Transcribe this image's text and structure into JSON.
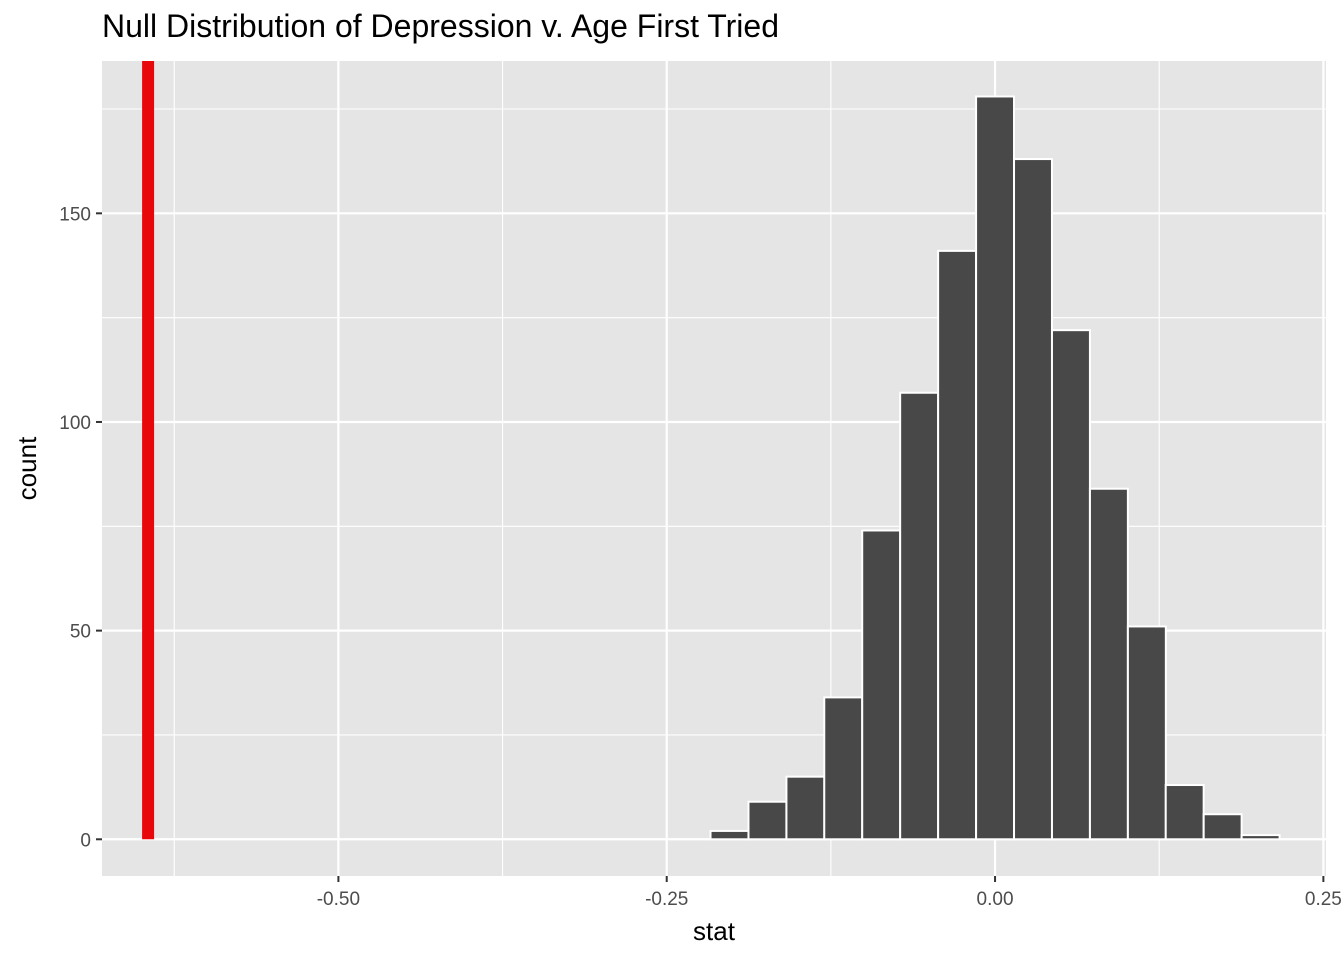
{
  "chart_data": {
    "type": "bar",
    "title": "Null Distribution of Depression v. Age First Tried",
    "xlabel": "stat",
    "ylabel": "count",
    "xlim": [
      -0.68,
      0.252
    ],
    "ylim": [
      -8.8,
      186.5
    ],
    "x_ticks": [
      -0.5,
      -0.25,
      0.0,
      0.25
    ],
    "x_tick_labels": [
      "-0.50",
      "-0.25",
      "0.00",
      "0.25"
    ],
    "y_ticks": [
      0,
      50,
      100,
      150
    ],
    "y_tick_labels": [
      "0",
      "50",
      "100",
      "150"
    ],
    "bin_width": 0.02889,
    "bins": [
      {
        "center": -0.2022,
        "count": 2
      },
      {
        "center": -0.1733,
        "count": 9
      },
      {
        "center": -0.1444,
        "count": 15
      },
      {
        "center": -0.1156,
        "count": 34
      },
      {
        "center": -0.0867,
        "count": 74
      },
      {
        "center": -0.0578,
        "count": 107
      },
      {
        "center": -0.0289,
        "count": 141
      },
      {
        "center": 0.0,
        "count": 178
      },
      {
        "center": 0.0289,
        "count": 163
      },
      {
        "center": 0.0578,
        "count": 122
      },
      {
        "center": 0.0867,
        "count": 84
      },
      {
        "center": 0.1156,
        "count": 51
      },
      {
        "center": 0.1444,
        "count": 13
      },
      {
        "center": 0.1733,
        "count": 6
      },
      {
        "center": 0.2022,
        "count": 1
      }
    ],
    "observed_stat": -0.6449,
    "grid": true,
    "colors": {
      "panel": "#e5e5e5",
      "grid": "#ffffff",
      "bar_fill": "#484848",
      "bar_stroke": "#ffffff",
      "observed_line": "#e8080c"
    }
  }
}
